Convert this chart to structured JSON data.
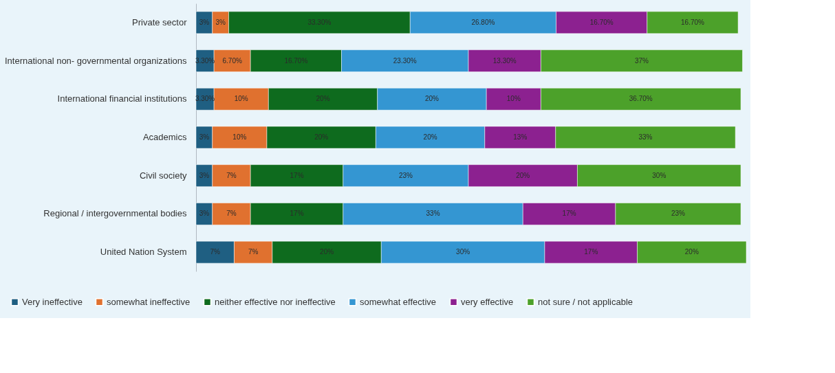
{
  "chart_data": {
    "type": "bar",
    "orientation": "horizontal",
    "stacked": true,
    "categories": [
      "Private sector",
      "International non- governmental organizations",
      "International financial institutions",
      "Academics",
      "Civil society",
      "Regional / intergovernmental bodies",
      "United Nation System"
    ],
    "xlim": [
      0,
      101
    ],
    "tick_labels": "y",
    "legend": "bottom",
    "series": [
      {
        "name": "Very ineffective",
        "color": "#1f5f82",
        "values": [
          3,
          3.3,
          3.3,
          3,
          3,
          3,
          7
        ],
        "value_labels": [
          "3%",
          "3.30%",
          "3.30%",
          "3%",
          "3%",
          "3%",
          "7%"
        ]
      },
      {
        "name": "somewhat ineffective",
        "color": "#e0712f",
        "values": [
          3,
          6.7,
          10,
          10,
          7,
          7,
          7
        ],
        "value_labels": [
          "3%",
          "6.70%",
          "10%",
          "10%",
          "7%",
          "7%",
          "7%"
        ]
      },
      {
        "name": "neither effective nor ineffective",
        "color": "#0e6b1e",
        "values": [
          33.3,
          16.7,
          20,
          20,
          17,
          17,
          20
        ],
        "value_labels": [
          "33.30%",
          "16.70%",
          "20%",
          "20%",
          "17%",
          "17%",
          "20%"
        ]
      },
      {
        "name": "somewhat effective",
        "color": "#3496d2",
        "values": [
          26.8,
          23.3,
          20,
          20,
          23,
          33,
          30
        ],
        "value_labels": [
          "26.80%",
          "23.30%",
          "20%",
          "20%",
          "23%",
          "33%",
          "30%"
        ]
      },
      {
        "name": "very effective",
        "color": "#8c2190",
        "values": [
          16.7,
          13.3,
          10,
          13,
          20,
          17,
          17
        ],
        "value_labels": [
          "16.70%",
          "13.30%",
          "10%",
          "13%",
          "20%",
          "17%",
          "17%"
        ]
      },
      {
        "name": "not sure / not applicable",
        "color": "#4ca12a",
        "values": [
          16.7,
          37,
          36.7,
          33,
          30,
          23,
          20
        ],
        "value_labels": [
          "16.70%",
          "37%",
          "36.70%",
          "33%",
          "30%",
          "23%",
          "20%"
        ]
      }
    ]
  }
}
